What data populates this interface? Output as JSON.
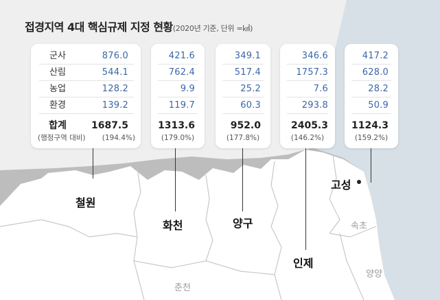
{
  "title": {
    "main": "접경지역 4대 핵심규제 지정 현황",
    "sub": "(2020년 기준, 단위 =㎢)"
  },
  "chart_data": {
    "type": "table",
    "row_labels": [
      "군사",
      "산림",
      "농업",
      "환경"
    ],
    "total_label": "합계",
    "ratio_label": "(행정구역 대비)",
    "regions": [
      {
        "name": "철원",
        "values": [
          "876.0",
          "544.1",
          "128.2",
          "139.2"
        ],
        "total": "1687.5",
        "ratio": "(194.4%)"
      },
      {
        "name": "화천",
        "values": [
          "421.6",
          "762.4",
          "9.9",
          "119.7"
        ],
        "total": "1313.6",
        "ratio": "(179.0%)"
      },
      {
        "name": "양구",
        "values": [
          "349.1",
          "517.4",
          "25.2",
          "60.3"
        ],
        "total": "952.0",
        "ratio": "(177.8%)"
      },
      {
        "name": "인제",
        "values": [
          "346.6",
          "1757.3",
          "7.6",
          "293.8"
        ],
        "total": "2405.3",
        "ratio": "(146.2%)"
      },
      {
        "name": "고성",
        "values": [
          "417.2",
          "628.0",
          "28.2",
          "50.9"
        ],
        "total": "1124.3",
        "ratio": "(159.2%)"
      }
    ]
  },
  "map": {
    "other_regions": [
      "속초",
      "양양",
      "춘천"
    ]
  },
  "colors": {
    "value_text": "#3a66a8",
    "card_bg": "#ffffff",
    "border_area": "#bdbdbd",
    "inland": "#ffffff",
    "sea": "#d7e0e7"
  }
}
